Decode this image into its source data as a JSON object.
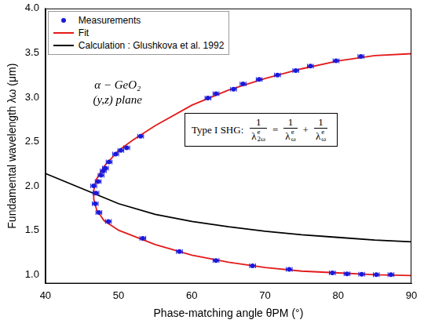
{
  "chart_data": {
    "type": "scatter",
    "x_label": "Phase-matching angle θPM (°)",
    "y_label": "Fundamental wavelength λω (μm)",
    "xlim": [
      40,
      90
    ],
    "ylim": [
      0.9,
      4.0
    ],
    "xticks": [
      40,
      50,
      60,
      70,
      80,
      90
    ],
    "yticks": [
      {
        "value": 1.0,
        "label": "1.0"
      },
      {
        "value": 1.5,
        "label": "1.5"
      },
      {
        "value": 2.0,
        "label": "2.0"
      },
      {
        "value": 2.5,
        "label": "2.5"
      },
      {
        "value": 3.0,
        "label": "3.0"
      },
      {
        "value": 3.5,
        "label": "3.5"
      },
      {
        "value": 4.0,
        "label": "4.0"
      }
    ],
    "grid": false,
    "legend": "upper left",
    "series": [
      {
        "name": "Measurements",
        "color": "#1a1adb",
        "marker": "circle",
        "line_style": "none",
        "x": [
          46.6,
          46.9,
          47.2,
          47.6,
          47.9,
          48.2,
          48.7,
          49.6,
          50.3,
          51.1,
          53.0,
          62.2,
          63.3,
          65.7,
          67.0,
          69.2,
          71.7,
          74.2,
          76.2,
          79.7,
          83.1,
          46.8,
          47.3,
          48.6,
          53.3,
          58.3,
          63.3,
          68.3,
          73.3,
          79.2,
          81.2,
          83.2,
          85.2,
          87.2
        ],
        "values": [
          2.0,
          1.92,
          2.05,
          2.12,
          2.17,
          2.2,
          2.27,
          2.36,
          2.4,
          2.43,
          2.56,
          2.99,
          3.04,
          3.09,
          3.15,
          3.2,
          3.25,
          3.3,
          3.35,
          3.41,
          3.46,
          1.8,
          1.7,
          1.6,
          1.41,
          1.26,
          1.16,
          1.1,
          1.06,
          1.02,
          1.01,
          1.005,
          1.0,
          1.0
        ],
        "x_errors": [
          0.4,
          0.4,
          0.4,
          0.4,
          0.4,
          0.4,
          0.4,
          0.4,
          0.4,
          0.4,
          0.4,
          0.4,
          0.4,
          0.4,
          0.4,
          0.4,
          0.4,
          0.4,
          0.4,
          0.4,
          0.4,
          0.4,
          0.4,
          0.4,
          0.4,
          0.4,
          0.4,
          0.4,
          0.4,
          0.4,
          0.4,
          0.4,
          0.4,
          0.4
        ]
      },
      {
        "name": "Fit",
        "color": "#e41a1a",
        "marker": "none",
        "line_style": "solid",
        "x": [
          90,
          85,
          80,
          75,
          70,
          65,
          60,
          55,
          52,
          50,
          48,
          47,
          46.6,
          46.6,
          47,
          48,
          50,
          55,
          60,
          65,
          70,
          75,
          80,
          85,
          90
        ],
        "values": [
          3.49,
          3.47,
          3.41,
          3.32,
          3.21,
          3.08,
          2.91,
          2.68,
          2.52,
          2.4,
          2.22,
          2.08,
          1.95,
          1.85,
          1.73,
          1.61,
          1.5,
          1.34,
          1.22,
          1.14,
          1.08,
          1.04,
          1.02,
          1.0,
          0.99
        ]
      },
      {
        "name": "Calculation : Glushkova et al. 1992",
        "color": "#000000",
        "marker": "none",
        "line_style": "solid",
        "x": [
          40,
          45,
          50,
          55,
          60,
          65,
          70,
          75,
          80,
          85,
          90
        ],
        "values": [
          2.14,
          1.97,
          1.8,
          1.68,
          1.6,
          1.54,
          1.49,
          1.45,
          1.42,
          1.39,
          1.37
        ]
      }
    ],
    "annotations": [
      "α − GeO₂",
      "(y,z) plane"
    ],
    "formula": {
      "label": "Type I SHG:",
      "terms": [
        {
          "numerator": "1",
          "symbol": "λ",
          "sup": "e",
          "sub": "2ω"
        },
        {
          "numerator": "1",
          "symbol": "λ",
          "sup": "e",
          "sub": "ω"
        },
        {
          "numerator": "1",
          "symbol": "λ",
          "sup": "e",
          "sub": "ω"
        }
      ],
      "operators": [
        "=",
        "+"
      ]
    }
  }
}
